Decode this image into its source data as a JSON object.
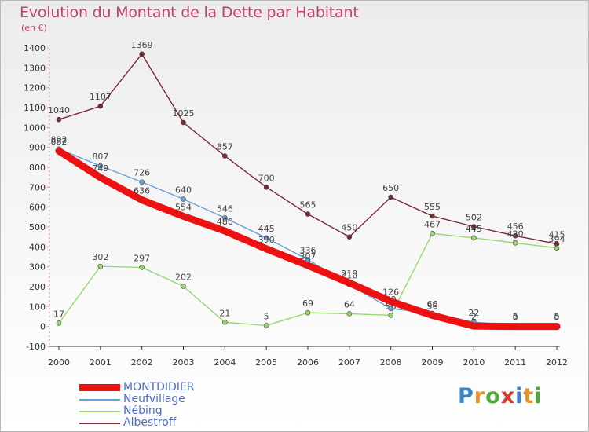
{
  "title": "Evolution du Montant de la Dette par Habitant",
  "subtitle": "(en €)",
  "logo": {
    "letters": [
      "P",
      "r",
      "o",
      "x",
      "i",
      "t",
      "i"
    ],
    "colors": [
      "#3d85c6",
      "#e8932a",
      "#52a83a",
      "#d63b2a",
      "#3d85c6",
      "#e8932a",
      "#52a83a"
    ]
  },
  "chart_data": {
    "type": "line",
    "x": [
      "2000",
      "2001",
      "2002",
      "2003",
      "2004",
      "2005",
      "2006",
      "2007",
      "2008",
      "2009",
      "2010",
      "2011",
      "2012"
    ],
    "ylim": [
      -100,
      1400
    ],
    "yticks": [
      -100,
      0,
      100,
      200,
      300,
      400,
      500,
      600,
      700,
      800,
      900,
      1000,
      1100,
      1200,
      1300,
      1400
    ],
    "grid": false,
    "legend_position": "bottom-left",
    "series": [
      {
        "name": "Albestroff",
        "color": "#7a2a33",
        "values": [
          1040,
          1107,
          1369,
          1025,
          857,
          700,
          565,
          450,
          650,
          555,
          502,
          456,
          415
        ]
      },
      {
        "name": "Nébing",
        "color": "#97d86e",
        "values": [
          17,
          302,
          297,
          202,
          21,
          5,
          69,
          64,
          56,
          467,
          445,
          420,
          394
        ]
      },
      {
        "name": "Neufvillage",
        "color": "#6a9fd8",
        "values": [
          892,
          807,
          726,
          640,
          546,
          445,
          336,
          210,
          90,
          66,
          22,
          5,
          5
        ]
      },
      {
        "name": "MONTDIDIER",
        "color": "#ee1111",
        "values": [
          882,
          749,
          636,
          554,
          480,
          390,
          307,
          219,
          126,
          56,
          2,
          0,
          0
        ]
      }
    ]
  }
}
